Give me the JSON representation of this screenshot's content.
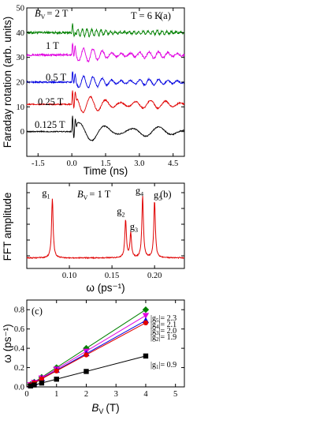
{
  "colors": {
    "green": "#008000",
    "magenta": "#e000e0",
    "blue": "#0000e0",
    "red": "#e00000",
    "black": "#000000",
    "cyan": "#00b8b8",
    "purple": "#9000c0"
  },
  "chart_data": [
    {
      "panel": "(a)",
      "type": "line",
      "ylabel": "Faraday rotation (arb. units)",
      "xlabel": "Time (ns)",
      "xlim": [
        -2.0,
        5.0
      ],
      "ylim": [
        -10,
        50
      ],
      "xticks": [
        "-1.5",
        "0.0",
        "1.5",
        "3.0",
        "4.5"
      ],
      "yticks": [
        "0",
        "10",
        "20",
        "30",
        "40",
        "50"
      ],
      "annotation": "T = 6 K",
      "series": [
        {
          "name": "Bv = 2 T",
          "label_text": "= 2 T",
          "label_var": "B",
          "label_sub": "V",
          "offset": 40,
          "freq": 1.6,
          "amp": 1.2,
          "noise": 0.9,
          "color": "#008000"
        },
        {
          "name": "1 T",
          "label_text": "1 T",
          "offset": 31,
          "freq": 0.8,
          "amp": 2.0,
          "noise": 0.8,
          "color": "#e000e0"
        },
        {
          "name": "0.5 T",
          "label_text": "0.5 T",
          "offset": 20,
          "freq": 0.8,
          "amp": 1.8,
          "noise": 0.6,
          "color": "#0000e0"
        },
        {
          "name": "0.25 T",
          "label_text": "0.25 T",
          "offset": 11,
          "freq": 0.5,
          "amp": 2.5,
          "noise": 0.5,
          "color": "#e00000"
        },
        {
          "name": "0.125 T",
          "label_text": "0.125 T",
          "offset": 0,
          "freq": 0.28,
          "amp": 3.0,
          "noise": 0.4,
          "color": "#000000"
        }
      ]
    },
    {
      "panel": "(b)",
      "type": "line",
      "ylabel": "FFT amplitude",
      "xlabel": "ω (ps⁻¹)",
      "xlim": [
        0.05,
        0.235
      ],
      "xticks": [
        "0.10",
        "0.15",
        "0.20"
      ],
      "annotation": "= 1 T",
      "annotation_var": "B",
      "annotation_sub": "V",
      "peaks": [
        {
          "label": "g",
          "sub": "1",
          "x": 0.08,
          "height": 0.86
        },
        {
          "label": "g",
          "sub": "2",
          "x": 0.166,
          "height": 0.55
        },
        {
          "label": "g",
          "sub": "3",
          "x": 0.172,
          "height": 0.35
        },
        {
          "label": "g",
          "sub": "4",
          "x": 0.186,
          "height": 0.89
        },
        {
          "label": "g",
          "sub": "5",
          "x": 0.2,
          "height": 0.82
        }
      ],
      "color": "#e00000"
    },
    {
      "panel": "(c)",
      "type": "scatter",
      "ylabel": "ω (ps⁻¹)",
      "xlabel_var": "B",
      "xlabel_sub": "V",
      "xlabel_unit": "(T)",
      "xlim": [
        0,
        5.3
      ],
      "ylim": [
        0,
        0.9
      ],
      "xticks": [
        "0",
        "1",
        "2",
        "3",
        "4",
        "5"
      ],
      "yticks": [
        "0.0",
        "0.2",
        "0.4",
        "0.6",
        "0.8"
      ],
      "x": [
        0.125,
        0.25,
        0.5,
        1,
        2,
        4
      ],
      "series": [
        {
          "label": "|g",
          "sub": "5",
          "value": "|= 2.3",
          "slope": 0.2,
          "marker": "diamond",
          "color": "#008000"
        },
        {
          "label": "|g",
          "sub": "4",
          "value": "|= 2.1",
          "slope": 0.185,
          "marker": "triangle-down",
          "color": "#e000e0"
        },
        {
          "label": "|g",
          "sub": "3",
          "value": "|= 2.0",
          "slope": 0.172,
          "marker": "triangle-up",
          "color": "#0000e0"
        },
        {
          "label": "|g",
          "sub": "2",
          "value": "|= 1.9",
          "slope": 0.166,
          "marker": "circle",
          "color": "#e00000"
        },
        {
          "label": "|g",
          "sub": "1",
          "value": "|= 0.9",
          "slope": 0.08,
          "marker": "square",
          "color": "#000000"
        }
      ]
    }
  ]
}
